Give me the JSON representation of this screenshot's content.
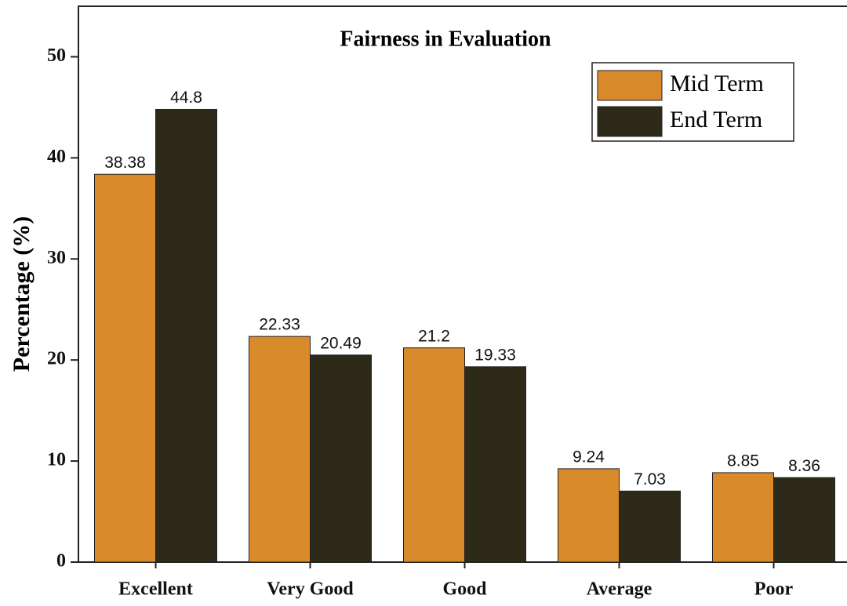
{
  "chart_data": {
    "type": "bar",
    "title": "Fairness in Evaluation",
    "y_label": "Percentage (%)",
    "categories": [
      "Excellent",
      "Very Good",
      "Good",
      "Average",
      "Poor"
    ],
    "series": [
      {
        "name": "Mid Term",
        "color": "#d98a2b",
        "values": [
          38.38,
          22.33,
          21.2,
          9.24,
          8.85
        ]
      },
      {
        "name": "End Term",
        "color": "#2e2a1a",
        "values": [
          44.8,
          20.49,
          19.33,
          7.03,
          8.36
        ]
      }
    ],
    "ylim": [
      0,
      55
    ],
    "yticks": [
      0,
      10,
      20,
      30,
      40,
      50
    ],
    "grid": false,
    "legend": "upper right"
  }
}
